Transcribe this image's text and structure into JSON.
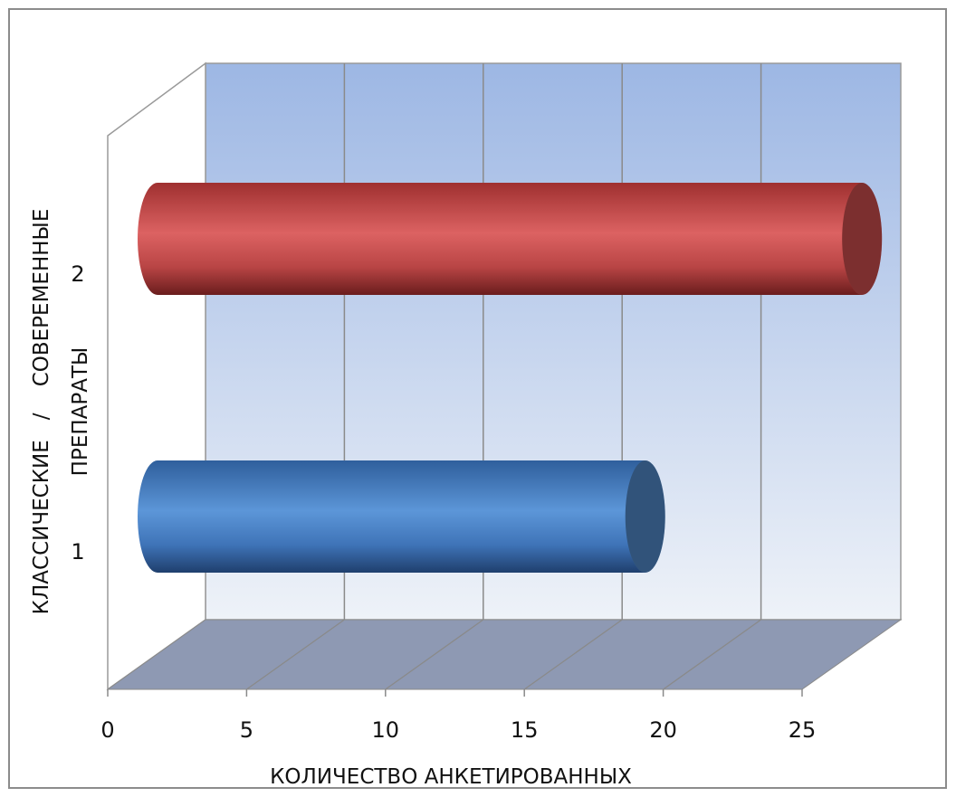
{
  "chart_data": {
    "type": "bar",
    "orientation": "horizontal",
    "style": "3d-cylinder",
    "categories": [
      "1",
      "2"
    ],
    "values": [
      18,
      26
    ],
    "bar_colors": [
      "#4f86c6",
      "#c94d4d"
    ],
    "xlabel": "КОЛИЧЕСТВО АНКЕТИРОВАННЫХ",
    "ylabel_line1": "КЛАССИЧЕСКИЕ   /    СОВЕРЕМЕННЫЕ",
    "ylabel_line2": "ПРЕПАРАТЫ",
    "x_ticks": [
      "0",
      "5",
      "10",
      "15",
      "20",
      "25"
    ],
    "xlim": [
      0,
      25
    ],
    "grid": true,
    "legend": "none",
    "colors": {
      "back_wall_top": "#9db7e4",
      "back_wall_bottom": "#eef2f8",
      "floor": "#8e99b3",
      "gridline": "#8a8a8a"
    }
  }
}
